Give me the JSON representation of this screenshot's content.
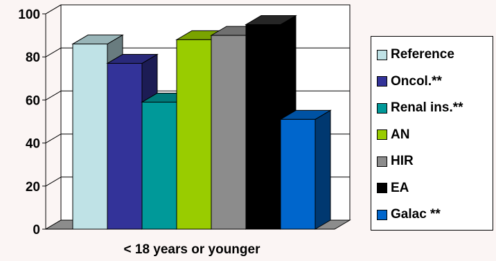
{
  "chart_data": {
    "type": "bar",
    "style": "3d-clustered",
    "categories": [
      "< 18 years or younger"
    ],
    "xlabel": "< 18 years or younger",
    "ylim": [
      0,
      100
    ],
    "yticks": [
      0,
      20,
      40,
      60,
      80,
      100
    ],
    "grid": true,
    "legend_position": "right",
    "series": [
      {
        "name": "Reference",
        "values": [
          86
        ],
        "color": "#bfe2e6"
      },
      {
        "name": "Oncol.**",
        "values": [
          77
        ],
        "color": "#333399"
      },
      {
        "name": "Renal ins.**",
        "values": [
          59
        ],
        "color": "#009999"
      },
      {
        "name": "AN",
        "values": [
          88
        ],
        "color": "#99cc00"
      },
      {
        "name": "HIR",
        "values": [
          90
        ],
        "color": "#8c8c8c"
      },
      {
        "name": "EA",
        "values": [
          95
        ],
        "color": "#000000"
      },
      {
        "name": "Galac **",
        "values": [
          51
        ],
        "color": "#0066cc"
      }
    ]
  }
}
